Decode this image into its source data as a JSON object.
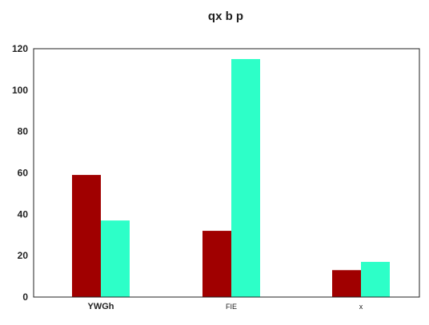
{
  "chart_data": {
    "type": "bar",
    "title": "qx b  p",
    "xlabel": "",
    "ylabel": "",
    "categories": [
      "YWGh",
      "FIE",
      "x"
    ],
    "series": [
      {
        "values": [
          59,
          32,
          13
        ]
      },
      {
        "values": [
          37,
          115,
          17
        ]
      }
    ],
    "ylim": [
      0,
      120
    ],
    "yticks": [
      0,
      20,
      40,
      60,
      80,
      100,
      120
    ],
    "grid": false,
    "legend": "none",
    "colors": [
      "#a00000",
      "#2dffc8"
    ]
  }
}
